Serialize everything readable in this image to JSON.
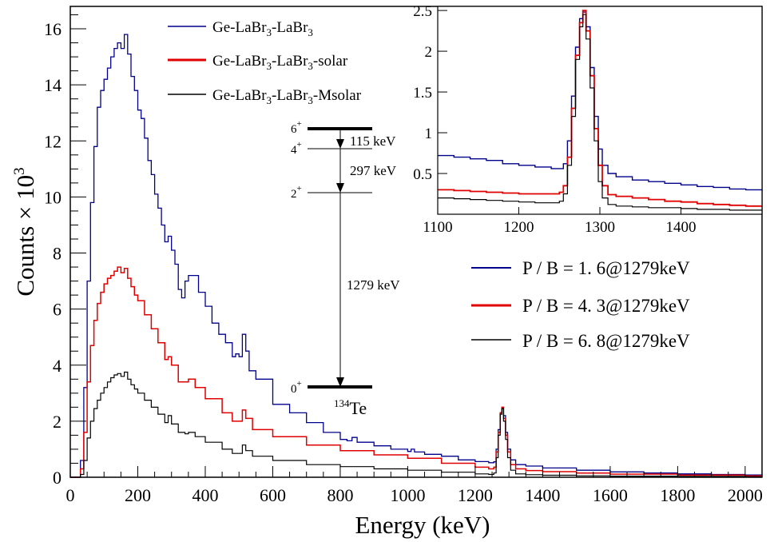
{
  "chart_data": {
    "type": "line",
    "xlabel": "Energy (keV)",
    "ylabel_main": "Counts × 10",
    "ylabel_exp": "3",
    "xlim": [
      0,
      2050
    ],
    "ylim": [
      0,
      16.8
    ],
    "xticks": [
      0,
      200,
      400,
      600,
      800,
      1000,
      1200,
      1400,
      1600,
      1800,
      2000
    ],
    "yticks": [
      0,
      2,
      4,
      6,
      8,
      10,
      12,
      14,
      16
    ],
    "legend": [
      {
        "base": "Ge-LaBr",
        "sub1": "3",
        "mid": "-LaBr",
        "sub2": "3",
        "tail": "",
        "color": "#00008b"
      },
      {
        "base": "Ge-LaBr",
        "sub1": "3",
        "mid": "-LaBr",
        "sub2": "3",
        "tail": "-solar",
        "color": "#e00000"
      },
      {
        "base": "Ge-LaBr",
        "sub1": "3",
        "mid": "-LaBr",
        "sub2": "3",
        "tail": "-Msolar",
        "color": "#000000"
      }
    ],
    "pb_ratios": [
      {
        "text": "P / B  =  1. 6@1279keV",
        "color": "#00008b"
      },
      {
        "text": "P / B  =  4. 3@1279keV",
        "color": "#e00000"
      },
      {
        "text": "P / B  =  6. 8@1279keV",
        "color": "#000000"
      }
    ],
    "series": [
      {
        "name": "Ge-LaBr3-LaBr3",
        "color": "#00008b",
        "x": [
          0,
          20,
          30,
          40,
          50,
          60,
          70,
          80,
          90,
          100,
          110,
          120,
          130,
          140,
          150,
          160,
          170,
          180,
          190,
          200,
          210,
          220,
          230,
          240,
          250,
          260,
          270,
          280,
          290,
          300,
          310,
          320,
          330,
          340,
          350,
          360,
          380,
          400,
          420,
          440,
          460,
          480,
          490,
          500,
          510,
          520,
          530,
          550,
          600,
          650,
          700,
          750,
          800,
          820,
          835,
          850,
          900,
          950,
          1000,
          1010,
          1020,
          1050,
          1100,
          1150,
          1200,
          1240,
          1255,
          1262,
          1268,
          1274,
          1279,
          1284,
          1290,
          1296,
          1305,
          1320,
          1350,
          1400,
          1500,
          1600,
          1700,
          1800,
          1900,
          2000,
          2050
        ],
        "y": [
          0,
          0,
          0.6,
          3.2,
          7.0,
          9.8,
          11.8,
          13.2,
          13.8,
          14.2,
          14.6,
          15.0,
          15.3,
          15.5,
          15.3,
          15.8,
          15.1,
          14.3,
          13.8,
          13.1,
          12.8,
          12.1,
          11.3,
          10.8,
          10.1,
          9.6,
          9.0,
          8.4,
          8.6,
          8.1,
          7.6,
          6.7,
          6.4,
          7.0,
          7.2,
          7.2,
          6.6,
          6.1,
          5.5,
          5.1,
          4.8,
          4.3,
          4.4,
          4.3,
          5.1,
          4.5,
          3.8,
          3.5,
          2.6,
          2.3,
          1.95,
          1.6,
          1.35,
          1.3,
          1.42,
          1.25,
          1.12,
          1.0,
          0.92,
          1.0,
          0.9,
          0.82,
          0.75,
          0.62,
          0.56,
          0.52,
          0.55,
          1.0,
          1.7,
          2.3,
          2.48,
          2.2,
          1.6,
          1.0,
          0.62,
          0.45,
          0.4,
          0.33,
          0.25,
          0.19,
          0.15,
          0.12,
          0.1,
          0.08,
          0.07
        ]
      },
      {
        "name": "Ge-LaBr3-LaBr3-solar",
        "color": "#e00000",
        "x": [
          0,
          20,
          30,
          40,
          50,
          60,
          70,
          80,
          90,
          100,
          110,
          120,
          130,
          140,
          150,
          160,
          170,
          180,
          190,
          200,
          220,
          240,
          260,
          280,
          290,
          300,
          320,
          340,
          350,
          370,
          400,
          450,
          480,
          500,
          510,
          520,
          540,
          600,
          700,
          800,
          900,
          1000,
          1100,
          1200,
          1240,
          1255,
          1262,
          1268,
          1274,
          1279,
          1284,
          1290,
          1296,
          1305,
          1320,
          1350,
          1400,
          1500,
          1600,
          1800,
          2000,
          2050
        ],
        "y": [
          0,
          0,
          0.3,
          1.6,
          3.4,
          4.7,
          5.6,
          6.2,
          6.6,
          6.9,
          7.1,
          7.2,
          7.35,
          7.5,
          7.3,
          7.45,
          7.1,
          6.8,
          6.5,
          6.3,
          5.8,
          5.3,
          4.8,
          4.2,
          4.3,
          4.0,
          3.4,
          3.4,
          3.5,
          3.2,
          2.8,
          2.3,
          2.0,
          2.0,
          2.4,
          2.1,
          1.7,
          1.45,
          1.15,
          0.95,
          0.8,
          0.68,
          0.5,
          0.36,
          0.3,
          0.36,
          0.9,
          1.6,
          2.3,
          2.5,
          2.1,
          1.5,
          0.9,
          0.45,
          0.3,
          0.24,
          0.2,
          0.15,
          0.11,
          0.08,
          0.05,
          0.04
        ]
      },
      {
        "name": "Ge-LaBr3-LaBr3-Msolar",
        "color": "#000000",
        "x": [
          0,
          20,
          30,
          40,
          50,
          60,
          70,
          80,
          90,
          100,
          110,
          120,
          130,
          140,
          150,
          160,
          170,
          180,
          190,
          200,
          220,
          240,
          260,
          280,
          290,
          300,
          320,
          340,
          350,
          370,
          400,
          450,
          480,
          500,
          510,
          520,
          540,
          600,
          700,
          800,
          900,
          1000,
          1100,
          1200,
          1240,
          1255,
          1262,
          1268,
          1274,
          1279,
          1284,
          1290,
          1296,
          1305,
          1320,
          1350,
          1400,
          1500,
          1600,
          1800,
          2000,
          2050
        ],
        "y": [
          0,
          0,
          0.1,
          0.6,
          1.4,
          2.0,
          2.45,
          2.75,
          3.0,
          3.2,
          3.4,
          3.55,
          3.65,
          3.7,
          3.6,
          3.75,
          3.5,
          3.3,
          3.15,
          3.0,
          2.75,
          2.5,
          2.25,
          1.95,
          2.2,
          1.9,
          1.6,
          1.55,
          1.6,
          1.45,
          1.25,
          1.0,
          0.85,
          0.85,
          1.15,
          0.95,
          0.75,
          0.6,
          0.45,
          0.38,
          0.3,
          0.25,
          0.18,
          0.12,
          0.1,
          0.15,
          0.7,
          1.5,
          2.25,
          2.45,
          2.0,
          1.35,
          0.7,
          0.25,
          0.12,
          0.09,
          0.07,
          0.05,
          0.04,
          0.03,
          0.02,
          0.02
        ]
      }
    ],
    "inset": {
      "xlim": [
        1100,
        1500
      ],
      "ylim": [
        0,
        2.55
      ],
      "xticks": [
        1100,
        1200,
        1300,
        1400
      ],
      "yticks": [
        0.5,
        1,
        1.5,
        2,
        2.5
      ],
      "ytick_labels": [
        "0.5",
        "1",
        "1.5",
        "2",
        "2.5"
      ],
      "series": [
        {
          "name": "Ge-LaBr3-LaBr3",
          "color": "#00008b",
          "x": [
            1100,
            1120,
            1140,
            1160,
            1180,
            1200,
            1220,
            1240,
            1250,
            1255,
            1260,
            1265,
            1270,
            1275,
            1279,
            1283,
            1288,
            1293,
            1298,
            1303,
            1310,
            1320,
            1340,
            1360,
            1380,
            1400,
            1420,
            1440,
            1460,
            1480,
            1500
          ],
          "y": [
            0.72,
            0.7,
            0.68,
            0.66,
            0.62,
            0.6,
            0.58,
            0.56,
            0.56,
            0.62,
            0.9,
            1.45,
            2.05,
            2.4,
            2.48,
            2.3,
            1.8,
            1.2,
            0.8,
            0.6,
            0.5,
            0.46,
            0.42,
            0.4,
            0.38,
            0.36,
            0.34,
            0.33,
            0.31,
            0.3,
            0.29
          ]
        },
        {
          "name": "Ge-LaBr3-LaBr3-solar",
          "color": "#e00000",
          "x": [
            1100,
            1120,
            1140,
            1160,
            1180,
            1200,
            1220,
            1240,
            1250,
            1255,
            1260,
            1265,
            1270,
            1275,
            1279,
            1283,
            1288,
            1293,
            1298,
            1303,
            1310,
            1320,
            1340,
            1360,
            1380,
            1400,
            1420,
            1440,
            1460,
            1480,
            1500
          ],
          "y": [
            0.3,
            0.29,
            0.28,
            0.27,
            0.26,
            0.25,
            0.25,
            0.25,
            0.27,
            0.35,
            0.7,
            1.3,
            1.95,
            2.35,
            2.5,
            2.25,
            1.7,
            1.05,
            0.6,
            0.35,
            0.24,
            0.22,
            0.2,
            0.18,
            0.16,
            0.15,
            0.13,
            0.12,
            0.11,
            0.1,
            0.1
          ]
        },
        {
          "name": "Ge-LaBr3-LaBr3-Msolar",
          "color": "#000000",
          "x": [
            1100,
            1120,
            1140,
            1160,
            1180,
            1200,
            1220,
            1240,
            1250,
            1255,
            1260,
            1265,
            1270,
            1275,
            1279,
            1283,
            1288,
            1293,
            1298,
            1303,
            1310,
            1320,
            1340,
            1360,
            1380,
            1400,
            1420,
            1440,
            1460,
            1480,
            1500
          ],
          "y": [
            0.2,
            0.19,
            0.18,
            0.17,
            0.16,
            0.15,
            0.14,
            0.14,
            0.16,
            0.25,
            0.6,
            1.2,
            1.9,
            2.3,
            2.45,
            2.15,
            1.55,
            0.9,
            0.4,
            0.2,
            0.12,
            0.1,
            0.09,
            0.08,
            0.08,
            0.07,
            0.06,
            0.06,
            0.05,
            0.05,
            0.05
          ]
        }
      ]
    },
    "level_scheme": {
      "nucleus_mass": "134",
      "nucleus_symbol": "Te",
      "levels": [
        {
          "spin": "6",
          "parity": "+"
        },
        {
          "spin": "4",
          "parity": "+"
        },
        {
          "spin": "2",
          "parity": "+"
        },
        {
          "spin": "0",
          "parity": "+"
        }
      ],
      "transitions": [
        "115 keV",
        "297 keV",
        "1279 keV"
      ]
    }
  }
}
